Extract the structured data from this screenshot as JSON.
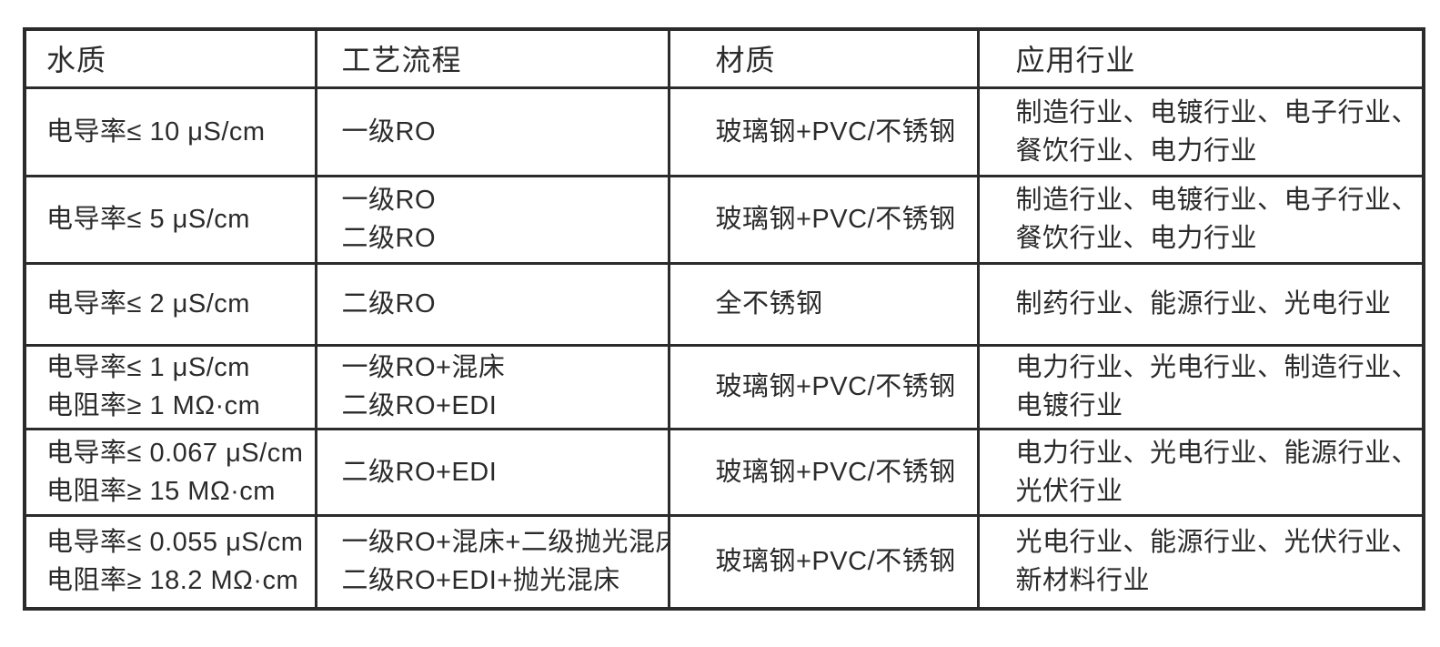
{
  "colors": {
    "background": "#ffffff",
    "border": "#2b2b2b",
    "text": "#2b2b2b"
  },
  "table": {
    "headers": [
      {
        "key": "water_quality",
        "label": "水质"
      },
      {
        "key": "process",
        "label": "工艺流程"
      },
      {
        "key": "material",
        "label": "材质"
      },
      {
        "key": "industries",
        "label": "应用行业"
      }
    ],
    "rows": [
      {
        "water_quality": [
          "电导率≤ 10 μS/cm"
        ],
        "process": [
          "一级RO"
        ],
        "material": [
          "玻璃钢+PVC/不锈钢"
        ],
        "industries": [
          "制造行业、电镀行业、电子行业、",
          "餐饮行业、电力行业"
        ]
      },
      {
        "water_quality": [
          "电导率≤ 5 μS/cm"
        ],
        "process": [
          "一级RO",
          "二级RO"
        ],
        "material": [
          "玻璃钢+PVC/不锈钢"
        ],
        "industries": [
          "制造行业、电镀行业、电子行业、",
          "餐饮行业、电力行业"
        ]
      },
      {
        "water_quality": [
          "电导率≤ 2 μS/cm"
        ],
        "process": [
          "二级RO"
        ],
        "material": [
          "全不锈钢"
        ],
        "industries": [
          "制药行业、能源行业、光电行业"
        ]
      },
      {
        "water_quality": [
          "电导率≤ 1 μS/cm",
          "电阻率≥ 1 MΩ·cm"
        ],
        "process": [
          "一级RO+混床",
          "二级RO+EDI"
        ],
        "material": [
          "玻璃钢+PVC/不锈钢"
        ],
        "industries": [
          "电力行业、光电行业、制造行业、",
          "电镀行业"
        ]
      },
      {
        "water_quality": [
          "电导率≤ 0.067 μS/cm",
          "电阻率≥ 15 MΩ·cm"
        ],
        "process": [
          "二级RO+EDI"
        ],
        "material": [
          "玻璃钢+PVC/不锈钢"
        ],
        "industries": [
          "电力行业、光电行业、能源行业、",
          "光伏行业"
        ]
      },
      {
        "water_quality": [
          "电导率≤ 0.055 μS/cm",
          "电阻率≥ 18.2 MΩ·cm"
        ],
        "process": [
          "一级RO+混床+二级抛光混床",
          "二级RO+EDI+抛光混床"
        ],
        "material": [
          "玻璃钢+PVC/不锈钢"
        ],
        "industries": [
          "光电行业、能源行业、光伏行业、",
          "新材料行业"
        ]
      }
    ]
  }
}
